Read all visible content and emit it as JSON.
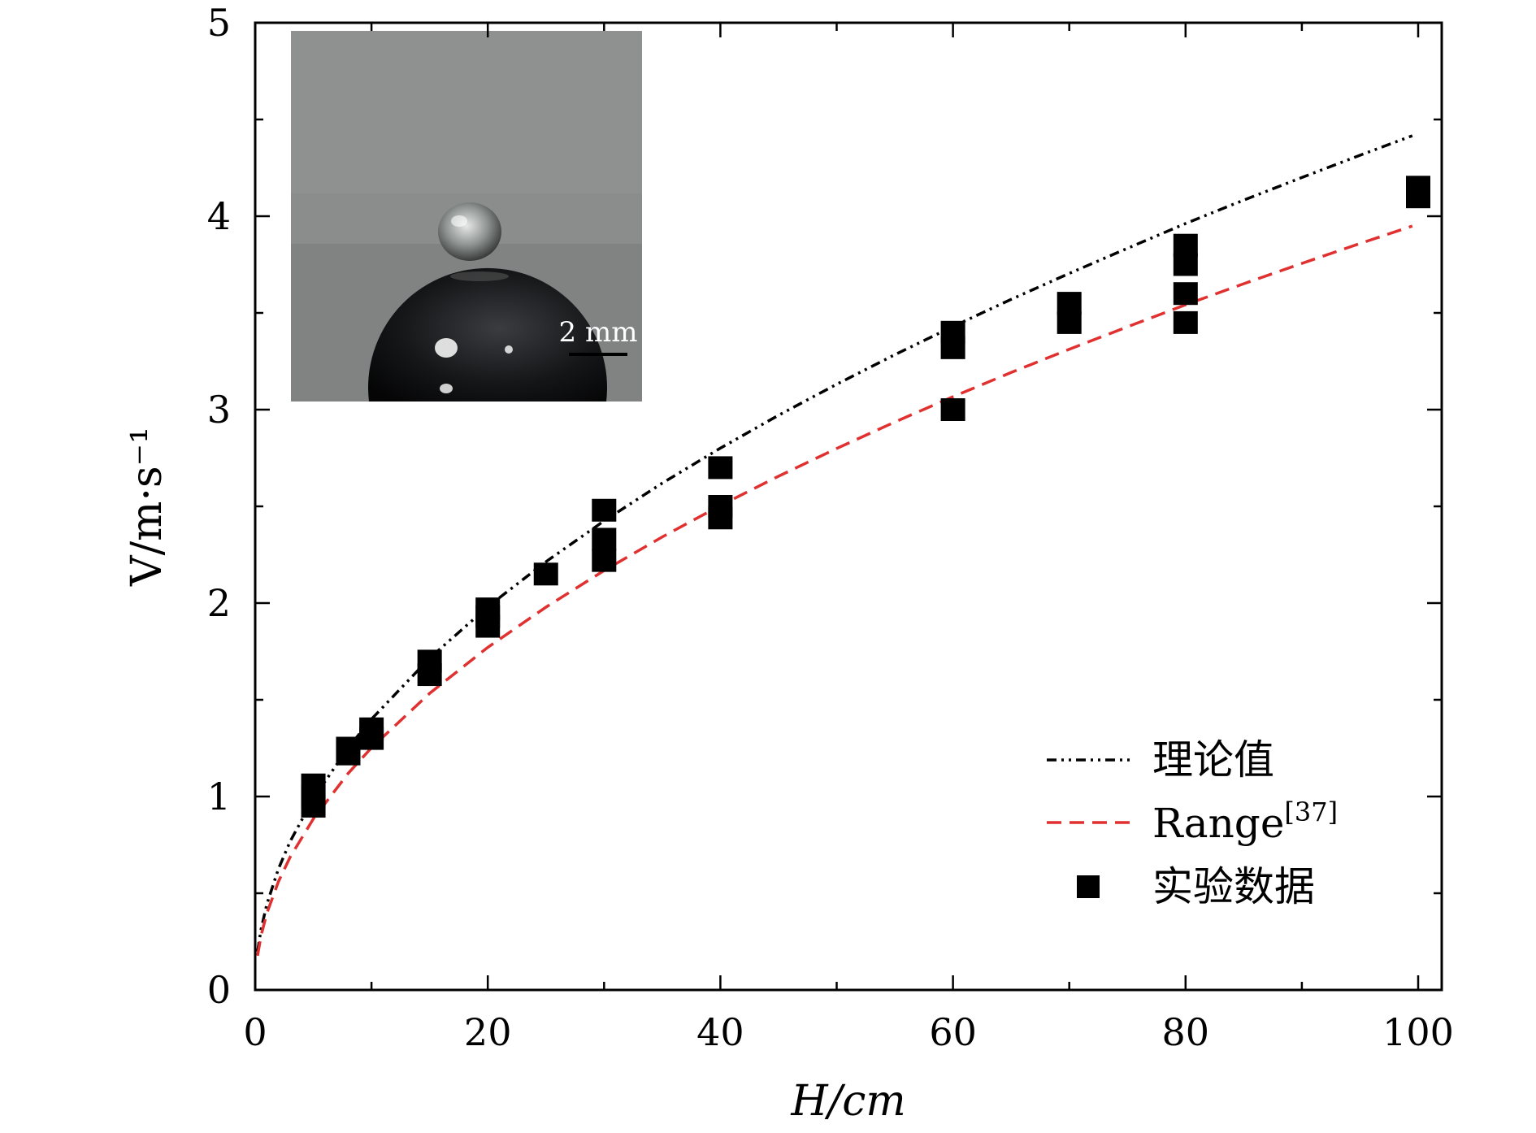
{
  "chart_data": {
    "type": "scatter",
    "xlabel": "H/cm",
    "ylabel": "V/m·s⁻¹",
    "xlim": [
      0,
      102
    ],
    "ylim": [
      0,
      5
    ],
    "x_ticks": [
      "0",
      "20",
      "40",
      "60",
      "80",
      "100"
    ],
    "y_ticks": [
      "0",
      "1",
      "2",
      "3",
      "4",
      "5"
    ],
    "legend_position": "bottom-right",
    "grid": false,
    "inset": {
      "type": "photograph",
      "content": "water droplet resting on a black sphere",
      "scale_bar_label": "2 mm"
    },
    "series": [
      {
        "name": "理论值",
        "style": "dash-dot-dot",
        "color": "#000000",
        "x": [
          0.2,
          0.5,
          1,
          2,
          3,
          5,
          8,
          10,
          15,
          20,
          25,
          30,
          35,
          40,
          45,
          50,
          55,
          60,
          65,
          70,
          75,
          80,
          85,
          90,
          95,
          99.5
        ],
        "y": [
          0.198,
          0.313,
          0.443,
          0.626,
          0.767,
          0.99,
          1.253,
          1.4,
          1.715,
          1.981,
          2.214,
          2.425,
          2.62,
          2.801,
          2.971,
          3.131,
          3.284,
          3.43,
          3.57,
          3.704,
          3.834,
          3.962,
          4.083,
          4.2,
          4.315,
          4.416
        ]
      },
      {
        "name": "Range[37]",
        "legend_label": "Range",
        "legend_superscript": "[37]",
        "style": "dashed",
        "color": "#e03030",
        "x": [
          0.2,
          0.5,
          1,
          2,
          3,
          5,
          8,
          10,
          15,
          20,
          25,
          30,
          35,
          40,
          45,
          50,
          55,
          60,
          65,
          70,
          75,
          80,
          85,
          90,
          95,
          99.5
        ],
        "y": [
          0.177,
          0.28,
          0.396,
          0.56,
          0.686,
          0.885,
          1.12,
          1.252,
          1.533,
          1.771,
          1.979,
          2.168,
          2.342,
          2.504,
          2.656,
          2.799,
          2.936,
          3.067,
          3.192,
          3.312,
          3.428,
          3.542,
          3.651,
          3.756,
          3.859,
          3.949
        ]
      },
      {
        "name": "实验数据",
        "style": "square-marker",
        "color": "#000000",
        "points": [
          [
            5,
            1.06
          ],
          [
            5,
            1.0
          ],
          [
            5,
            0.95
          ],
          [
            8,
            1.25
          ],
          [
            8,
            1.22
          ],
          [
            10,
            1.35
          ],
          [
            10,
            1.3
          ],
          [
            15,
            1.7
          ],
          [
            15,
            1.63
          ],
          [
            20,
            1.97
          ],
          [
            20,
            1.93
          ],
          [
            20,
            1.88
          ],
          [
            25,
            2.15
          ],
          [
            30,
            2.48
          ],
          [
            30,
            2.33
          ],
          [
            30,
            2.22
          ],
          [
            40,
            2.7
          ],
          [
            40,
            2.5
          ],
          [
            40,
            2.44
          ],
          [
            60,
            3.4
          ],
          [
            60,
            3.32
          ],
          [
            60,
            3.0
          ],
          [
            70,
            3.55
          ],
          [
            70,
            3.45
          ],
          [
            80,
            3.85
          ],
          [
            80,
            3.75
          ],
          [
            80,
            3.6
          ],
          [
            80,
            3.45
          ],
          [
            100,
            4.15
          ],
          [
            100,
            4.1
          ]
        ]
      }
    ]
  }
}
